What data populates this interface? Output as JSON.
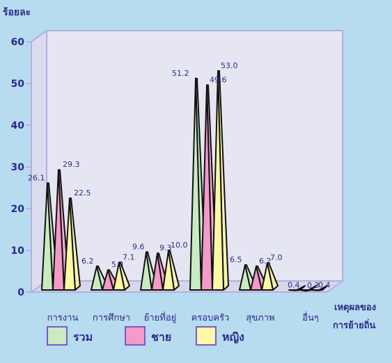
{
  "chart_data": {
    "type": "bar",
    "ylabel": "ร้อยละ",
    "xlabel": [
      "เหตุผลของ",
      "การย้ายถิ่น"
    ],
    "ylim": [
      0,
      60
    ],
    "yticks": [
      0,
      10,
      20,
      30,
      40,
      50,
      60
    ],
    "categories": [
      "การงาน",
      "การศึกษา",
      "ย้ายที่อยู่",
      "ครอบครัว",
      "สุขภาพ",
      "อื่นๆ"
    ],
    "series": [
      {
        "name": "รวม",
        "color": "#c8ecc0",
        "values": [
          26.1,
          6.2,
          9.6,
          51.2,
          6.5,
          0.4
        ]
      },
      {
        "name": "ชาย",
        "color": "#f49ac8",
        "values": [
          29.3,
          5.3,
          9.3,
          49.6,
          6.2,
          0.3
        ]
      },
      {
        "name": "หญิง",
        "color": "#fbf9a4",
        "values": [
          22.5,
          7.1,
          10.0,
          53.0,
          7.0,
          0.4
        ]
      }
    ],
    "data_labels": [
      [
        "26.1",
        "6.2",
        "9.6",
        "51.2",
        "6.5",
        "0.4"
      ],
      [
        "29.3",
        "5.3",
        "9.3",
        "49.6",
        "6.2",
        "0.3"
      ],
      [
        "22.5",
        "7.1",
        "10.0",
        "53.0",
        "7.0",
        "0.4"
      ]
    ],
    "legend": [
      "รวม",
      "ชาย",
      "หญิง"
    ],
    "colors": {
      "background": "#b7dcf0",
      "plot": "#e6e6f3",
      "frame": "#b3aee0",
      "text": "#2b2a86",
      "outline": "#111111"
    }
  }
}
